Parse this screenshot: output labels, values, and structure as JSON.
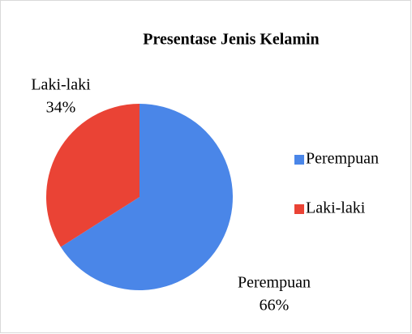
{
  "chart_data": {
    "type": "pie",
    "title": "Presentase Jenis Kelamin",
    "categories": [
      "Perempuan",
      "Laki-laki"
    ],
    "values": [
      66,
      34
    ],
    "value_labels": [
      "66%",
      "34%"
    ],
    "colors": [
      "#4a86e8",
      "#ea4335"
    ],
    "legend": "right"
  }
}
